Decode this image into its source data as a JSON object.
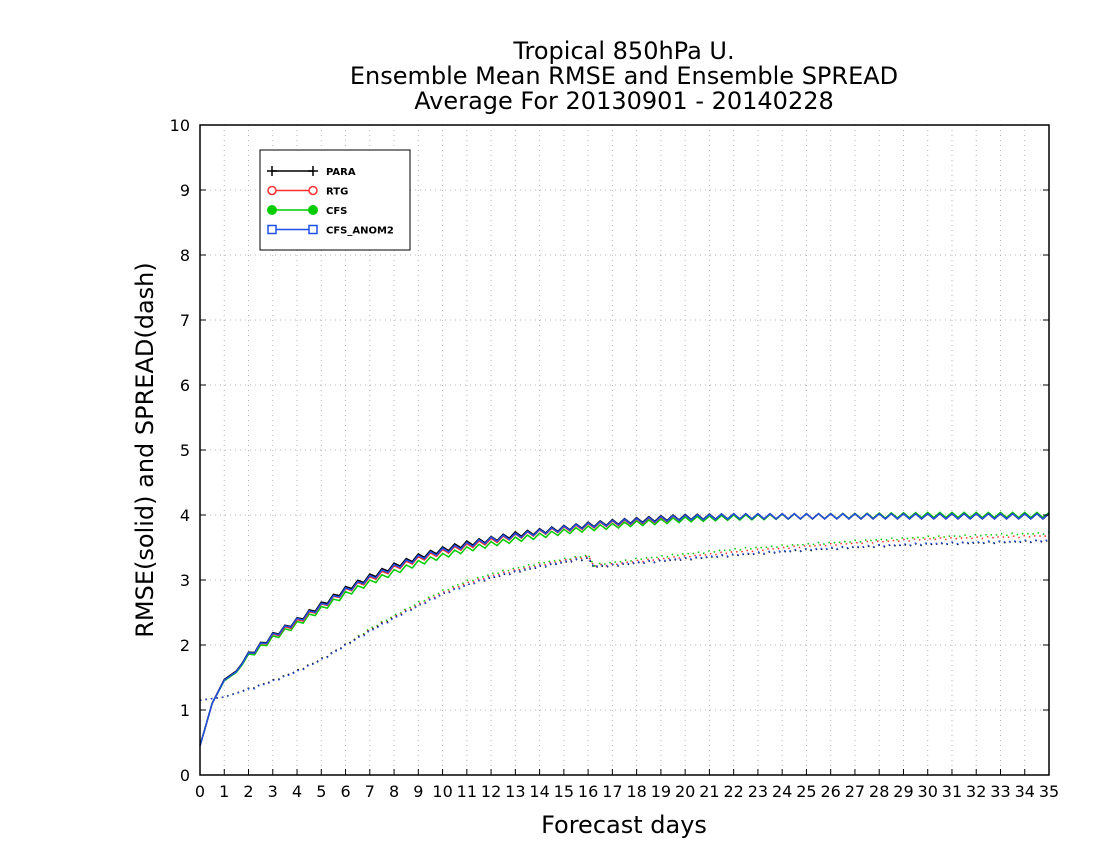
{
  "chart_data": {
    "type": "line",
    "title": [
      "Tropical 850hPa U.",
      "Ensemble Mean RMSE and Ensemble SPREAD",
      "Average For 20130901 - 20140228"
    ],
    "xlabel": "Forecast days",
    "ylabel": "RMSE(solid) and SPREAD(dash)",
    "xlim": [
      0,
      35
    ],
    "ylim": [
      0,
      10
    ],
    "xticks": [
      "0",
      "1",
      "2",
      "3",
      "4",
      "5",
      "6",
      "7",
      "8",
      "9",
      "10",
      "11",
      "12",
      "13",
      "14",
      "15",
      "16",
      "17",
      "18",
      "19",
      "20",
      "21",
      "22",
      "23",
      "24",
      "25",
      "26",
      "27",
      "28",
      "29",
      "30",
      "31",
      "32",
      "33",
      "34",
      "35"
    ],
    "yticks": [
      "0",
      "1",
      "2",
      "3",
      "4",
      "5",
      "6",
      "7",
      "8",
      "9",
      "10"
    ],
    "grid": true,
    "legend_position": "top-left",
    "series": [
      {
        "name": "PARA",
        "color": "#000000",
        "marker": "plus"
      },
      {
        "name": "RTG",
        "color": "#ff3030",
        "marker": "circle-open"
      },
      {
        "name": "CFS",
        "color": "#00cc00",
        "marker": "circle-filled"
      },
      {
        "name": "CFS_ANOM2",
        "color": "#1e50e6",
        "marker": "square-open"
      }
    ],
    "x_step_days": 0.25,
    "rmse": {
      "PARA": {
        "anchor_x": [
          0,
          0.5,
          1,
          1.5,
          2,
          3,
          4,
          5,
          6,
          7,
          8,
          9,
          10,
          11,
          12,
          13,
          14,
          15,
          16,
          17,
          18,
          19,
          20,
          22,
          25,
          28,
          30,
          35
        ],
        "anchor_y": [
          0.45,
          1.1,
          1.47,
          1.6,
          1.85,
          2.15,
          2.38,
          2.62,
          2.86,
          3.05,
          3.22,
          3.36,
          3.47,
          3.56,
          3.63,
          3.7,
          3.75,
          3.8,
          3.85,
          3.89,
          3.92,
          3.95,
          3.97,
          3.98,
          3.98,
          3.98,
          3.98,
          3.98
        ],
        "diurnal_amp": 0.04
      },
      "RTG": {
        "anchor_x": [
          0,
          0.5,
          1,
          1.5,
          2,
          3,
          4,
          5,
          6,
          7,
          8,
          9,
          10,
          11,
          12,
          13,
          14,
          15,
          16,
          17,
          18,
          19,
          20,
          22,
          25,
          28,
          30,
          35
        ],
        "anchor_y": [
          0.45,
          1.1,
          1.47,
          1.6,
          1.84,
          2.13,
          2.35,
          2.59,
          2.83,
          3.01,
          3.18,
          3.32,
          3.43,
          3.52,
          3.6,
          3.67,
          3.73,
          3.78,
          3.83,
          3.87,
          3.9,
          3.93,
          3.96,
          3.98,
          3.98,
          3.98,
          3.98,
          3.98
        ],
        "diurnal_amp": 0.04
      },
      "CFS": {
        "anchor_x": [
          0,
          0.5,
          1,
          1.5,
          2,
          3,
          4,
          5,
          6,
          7,
          8,
          9,
          10,
          11,
          12,
          13,
          14,
          15,
          16,
          17,
          18,
          19,
          20,
          22,
          25,
          28,
          30,
          35
        ],
        "anchor_y": [
          0.45,
          1.1,
          1.45,
          1.58,
          1.82,
          2.1,
          2.32,
          2.55,
          2.78,
          2.96,
          3.12,
          3.26,
          3.37,
          3.47,
          3.55,
          3.62,
          3.68,
          3.74,
          3.79,
          3.83,
          3.87,
          3.9,
          3.93,
          3.96,
          3.98,
          3.99,
          4.0,
          4.0
        ],
        "diurnal_amp": 0.04
      },
      "CFS_ANOM2": {
        "anchor_x": [
          0,
          0.5,
          1,
          1.5,
          2,
          3,
          4,
          5,
          6,
          7,
          8,
          9,
          10,
          11,
          12,
          13,
          14,
          15,
          16,
          17,
          18,
          19,
          20,
          22,
          25,
          28,
          30,
          35
        ],
        "anchor_y": [
          0.45,
          1.1,
          1.46,
          1.59,
          1.84,
          2.14,
          2.37,
          2.6,
          2.84,
          3.03,
          3.2,
          3.34,
          3.45,
          3.54,
          3.62,
          3.68,
          3.74,
          3.79,
          3.84,
          3.88,
          3.91,
          3.94,
          3.96,
          3.98,
          3.98,
          3.98,
          3.98,
          3.98
        ],
        "diurnal_amp": 0.04
      }
    },
    "spread": {
      "PARA": {
        "anchor_x": [
          0,
          1,
          2,
          3,
          4,
          5,
          6,
          7,
          8,
          9,
          10,
          11,
          12,
          13,
          14,
          15,
          16,
          16.25,
          17,
          18,
          20,
          22,
          25,
          28,
          30,
          33,
          35
        ],
        "anchor_y": [
          1.15,
          1.2,
          1.32,
          1.45,
          1.6,
          1.78,
          2.0,
          2.22,
          2.42,
          2.6,
          2.78,
          2.92,
          3.03,
          3.12,
          3.2,
          3.27,
          3.33,
          3.2,
          3.22,
          3.26,
          3.32,
          3.38,
          3.46,
          3.52,
          3.55,
          3.58,
          3.6
        ],
        "diurnal_amp": 0.015
      },
      "RTG": {
        "anchor_x": [
          0,
          1,
          2,
          3,
          4,
          5,
          6,
          7,
          8,
          9,
          10,
          11,
          12,
          13,
          14,
          15,
          16,
          16.25,
          17,
          18,
          20,
          22,
          25,
          28,
          30,
          33,
          35
        ],
        "anchor_y": [
          1.15,
          1.2,
          1.32,
          1.45,
          1.6,
          1.78,
          2.0,
          2.23,
          2.43,
          2.62,
          2.8,
          2.95,
          3.06,
          3.15,
          3.23,
          3.3,
          3.36,
          3.22,
          3.24,
          3.29,
          3.36,
          3.43,
          3.52,
          3.59,
          3.63,
          3.66,
          3.68
        ],
        "diurnal_amp": 0.015
      },
      "CFS": {
        "anchor_x": [
          0,
          1,
          2,
          3,
          4,
          5,
          6,
          7,
          8,
          9,
          10,
          11,
          12,
          13,
          14,
          15,
          16,
          16.25,
          17,
          18,
          20,
          22,
          25,
          28,
          30,
          33,
          35
        ],
        "anchor_y": [
          1.15,
          1.2,
          1.32,
          1.45,
          1.6,
          1.78,
          2.0,
          2.25,
          2.45,
          2.65,
          2.83,
          2.98,
          3.09,
          3.18,
          3.26,
          3.32,
          3.38,
          3.23,
          3.27,
          3.32,
          3.4,
          3.47,
          3.55,
          3.62,
          3.66,
          3.7,
          3.72
        ],
        "diurnal_amp": 0.015
      },
      "CFS_ANOM2": {
        "anchor_x": [
          0,
          1,
          2,
          3,
          4,
          5,
          6,
          7,
          8,
          9,
          10,
          11,
          12,
          13,
          14,
          15,
          16,
          16.25,
          17,
          18,
          20,
          22,
          25,
          28,
          30,
          33,
          35
        ],
        "anchor_y": [
          1.15,
          1.2,
          1.31,
          1.44,
          1.59,
          1.77,
          1.99,
          2.21,
          2.41,
          2.6,
          2.78,
          2.92,
          3.04,
          3.13,
          3.21,
          3.28,
          3.34,
          3.21,
          3.23,
          3.27,
          3.33,
          3.39,
          3.47,
          3.53,
          3.56,
          3.59,
          3.61
        ],
        "diurnal_amp": 0.015
      }
    }
  }
}
